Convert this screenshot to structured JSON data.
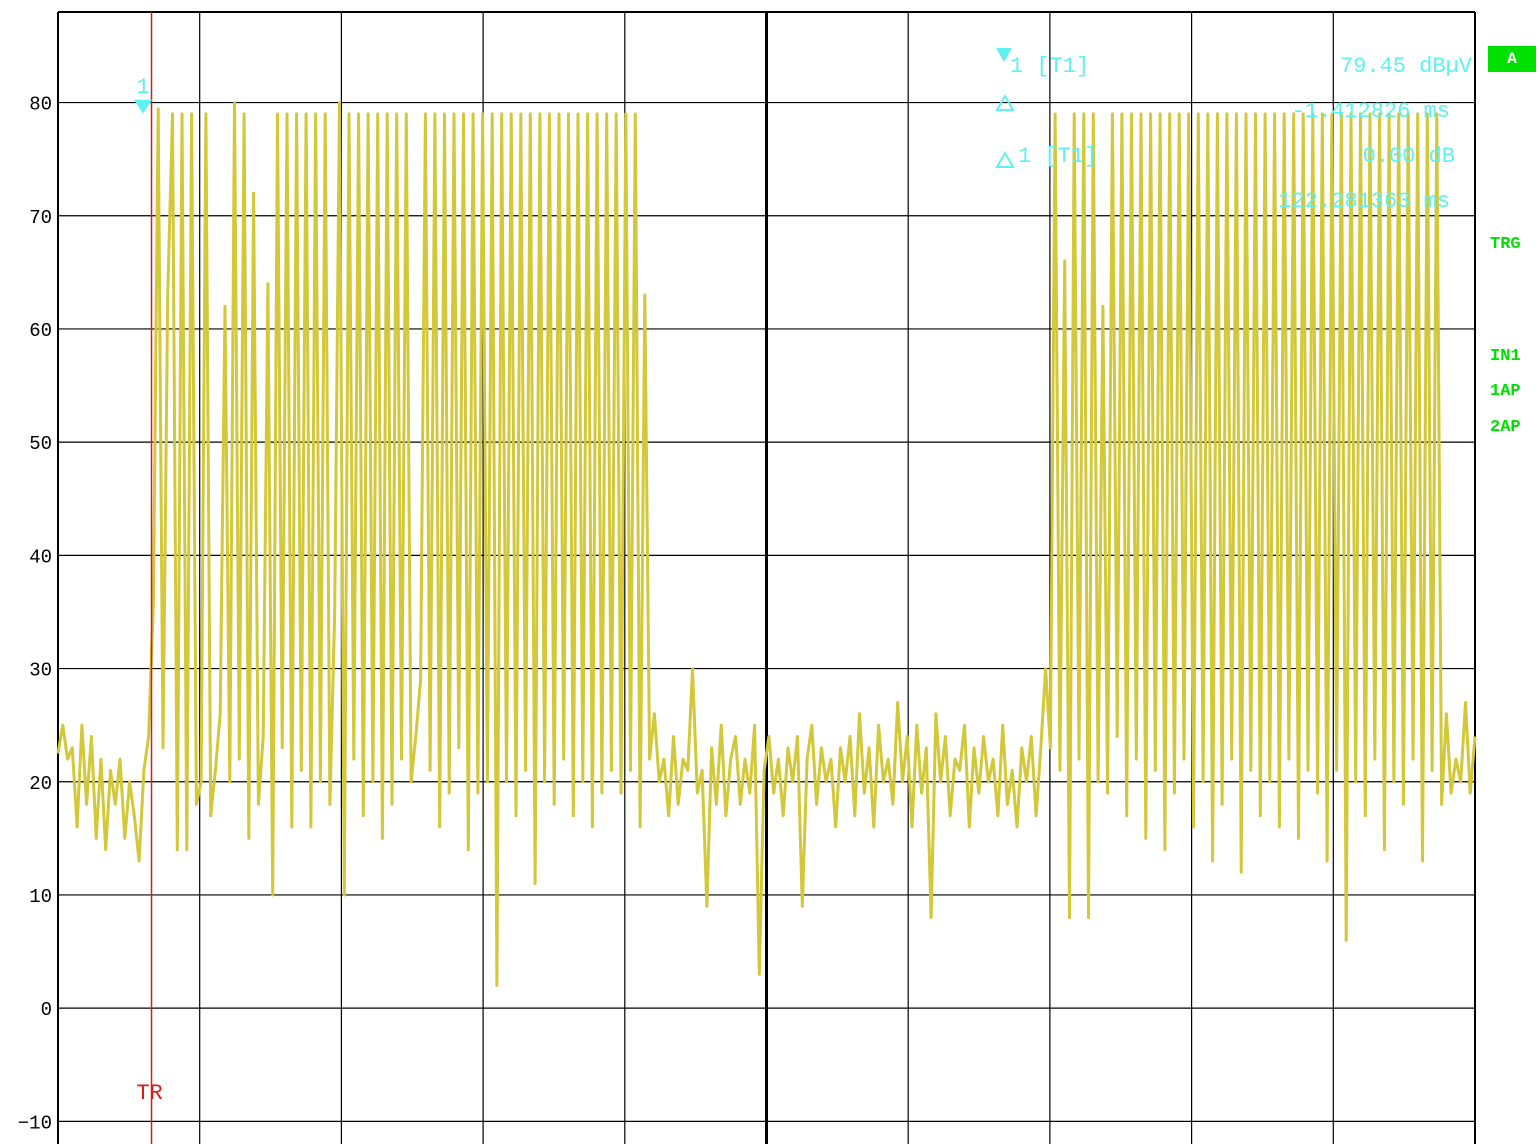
{
  "colors": {
    "trace": "#d2c83a",
    "marker": "#5ff0f0",
    "trigger": "#dd1a1a",
    "status": "#00e000",
    "grid": "#000000"
  },
  "marker_readout": {
    "m1_label": "1 [T1]",
    "m1_value": "79.45 dBµV",
    "m1_time": "-1.412826 ms",
    "d1_label": "1 [T1]",
    "d1_value": "0.00 dB",
    "d1_time": "122.281363 ms"
  },
  "marker_tag": "1",
  "trigger_label": "TR",
  "side": {
    "badge": "A",
    "trg": "TRG",
    "in1": "IN1",
    "ap1": "1AP",
    "ap2": "2AP"
  },
  "chart_data": {
    "type": "line",
    "title": "",
    "xlabel": "",
    "ylabel": "",
    "ylim": [
      -12,
      88
    ],
    "y_ticks": [
      80,
      70,
      60,
      50,
      40,
      30,
      20,
      10,
      0,
      -10
    ],
    "x_divisions": 10,
    "grid": true,
    "trigger_x_fraction": 0.066,
    "marker1": {
      "x_fraction": 0.06,
      "y": 79.45
    },
    "delta1": {
      "x_fraction": 0.67,
      "y": 79.45
    },
    "series": [
      {
        "values": [
          22.5,
          25,
          22,
          23,
          16,
          25,
          18,
          24,
          15,
          22,
          14,
          21,
          18,
          22,
          15,
          20,
          17,
          13,
          21,
          24,
          36,
          79.45,
          23,
          63,
          79,
          14,
          79,
          14,
          79,
          18,
          20,
          79,
          17,
          21,
          26,
          62,
          20,
          80,
          22,
          79,
          15,
          72,
          18,
          24,
          64,
          10,
          79,
          23,
          79,
          16,
          79,
          21,
          79,
          16,
          79,
          20,
          79,
          18,
          35,
          80,
          10,
          79,
          22,
          79,
          17,
          79,
          20,
          79,
          15,
          79,
          18,
          79,
          22,
          79,
          20,
          24,
          29,
          79,
          21,
          79,
          16,
          79,
          19,
          79,
          23,
          79,
          14,
          79,
          19,
          79,
          20,
          79,
          2,
          79,
          20,
          79,
          17,
          79,
          21,
          79,
          11,
          79,
          20,
          79,
          18,
          79,
          22,
          79,
          17,
          79,
          20,
          79,
          16,
          79,
          19,
          79,
          21,
          79,
          19,
          79,
          21,
          79,
          16,
          63,
          22,
          26,
          20,
          22,
          17,
          24,
          18,
          22,
          21,
          30,
          19,
          21,
          9,
          23,
          18,
          25,
          17,
          22,
          24,
          18,
          22,
          19,
          25,
          3,
          21,
          24,
          19,
          22,
          17,
          23,
          20,
          24,
          9,
          22,
          25,
          18,
          23,
          20,
          22,
          16,
          23,
          20,
          24,
          17,
          26,
          19,
          23,
          16,
          25,
          20,
          22,
          18,
          27,
          20,
          24,
          16,
          25,
          19,
          23,
          8,
          26,
          20,
          24,
          17,
          22,
          21,
          25,
          16,
          23,
          19,
          24,
          20,
          22,
          17,
          25,
          18,
          21,
          16,
          23,
          20,
          24,
          17,
          23,
          30,
          23,
          79,
          21,
          66,
          8,
          79,
          22,
          79,
          8,
          79,
          20,
          62,
          19,
          79,
          24,
          79,
          17,
          79,
          22,
          79,
          15,
          79,
          21,
          79,
          14,
          79,
          19,
          79,
          22,
          79,
          16,
          79,
          20,
          79,
          13,
          79,
          18,
          79,
          22,
          79,
          12,
          79,
          21,
          79,
          17,
          79,
          20,
          79,
          16,
          79,
          22,
          79,
          15,
          79,
          21,
          79,
          19,
          79,
          13,
          79,
          21,
          79,
          6,
          79,
          20,
          79,
          17,
          79,
          22,
          79,
          14,
          79,
          20,
          79,
          18,
          79,
          22,
          79,
          13,
          79,
          21,
          79,
          18,
          26,
          19,
          22,
          20,
          27,
          19,
          24
        ]
      }
    ]
  }
}
